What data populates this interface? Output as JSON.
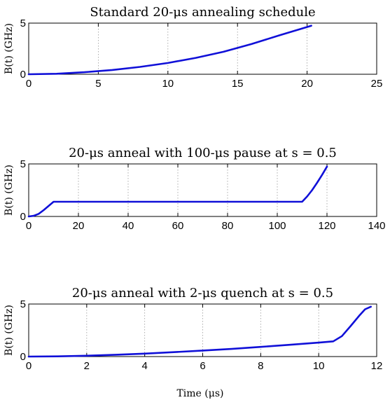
{
  "colors": {
    "series": "#1010d8",
    "axis": "#000000",
    "grid": "#999999"
  },
  "figure_xlabel": "Time (μs)",
  "chart_data": [
    {
      "type": "line",
      "title": "Standard 20-μs annealing schedule",
      "ylabel": "B(t)  (GHz)",
      "xlim": [
        0,
        25
      ],
      "ylim": [
        0,
        5
      ],
      "xticks": [
        0,
        5,
        10,
        15,
        20,
        25
      ],
      "yticks": [
        0,
        5
      ],
      "grid": "x-dotted",
      "series": [
        {
          "x": [
            0,
            2,
            4,
            6,
            8,
            10,
            12,
            14,
            16,
            18,
            20.3
          ],
          "y": [
            0,
            0.05,
            0.2,
            0.42,
            0.72,
            1.1,
            1.6,
            2.2,
            2.95,
            3.8,
            4.75
          ]
        }
      ]
    },
    {
      "type": "line",
      "title": "20-μs anneal with 100-μs pause at s = 0.5",
      "ylabel": "B(t)  (GHz)",
      "xlim": [
        0,
        140
      ],
      "ylim": [
        0,
        5
      ],
      "xticks": [
        0,
        20,
        40,
        60,
        80,
        100,
        120,
        140
      ],
      "yticks": [
        0,
        5
      ],
      "grid": "x-dotted",
      "series": [
        {
          "x": [
            0,
            2,
            4,
            6,
            8,
            10,
            110,
            112,
            114,
            116,
            118,
            120
          ],
          "y": [
            0,
            0.06,
            0.25,
            0.6,
            1.0,
            1.4,
            1.4,
            1.9,
            2.5,
            3.2,
            3.95,
            4.75
          ]
        }
      ]
    },
    {
      "type": "line",
      "title": "20-μs anneal with 2-μs quench at s = 0.5",
      "ylabel": "B(t)  (GHz)",
      "xlim": [
        0,
        12
      ],
      "ylim": [
        0,
        5
      ],
      "xticks": [
        0,
        2,
        4,
        6,
        8,
        10,
        12
      ],
      "yticks": [
        0,
        5
      ],
      "grid": "x-dotted",
      "series": [
        {
          "x": [
            0,
            1,
            2,
            3,
            4,
            5,
            6,
            7,
            8,
            9,
            10,
            10.5,
            10.8,
            11.1,
            11.4,
            11.6,
            11.8
          ],
          "y": [
            0,
            0.02,
            0.08,
            0.17,
            0.28,
            0.42,
            0.57,
            0.73,
            0.92,
            1.12,
            1.33,
            1.45,
            1.95,
            2.9,
            3.9,
            4.5,
            4.75
          ]
        }
      ]
    }
  ]
}
